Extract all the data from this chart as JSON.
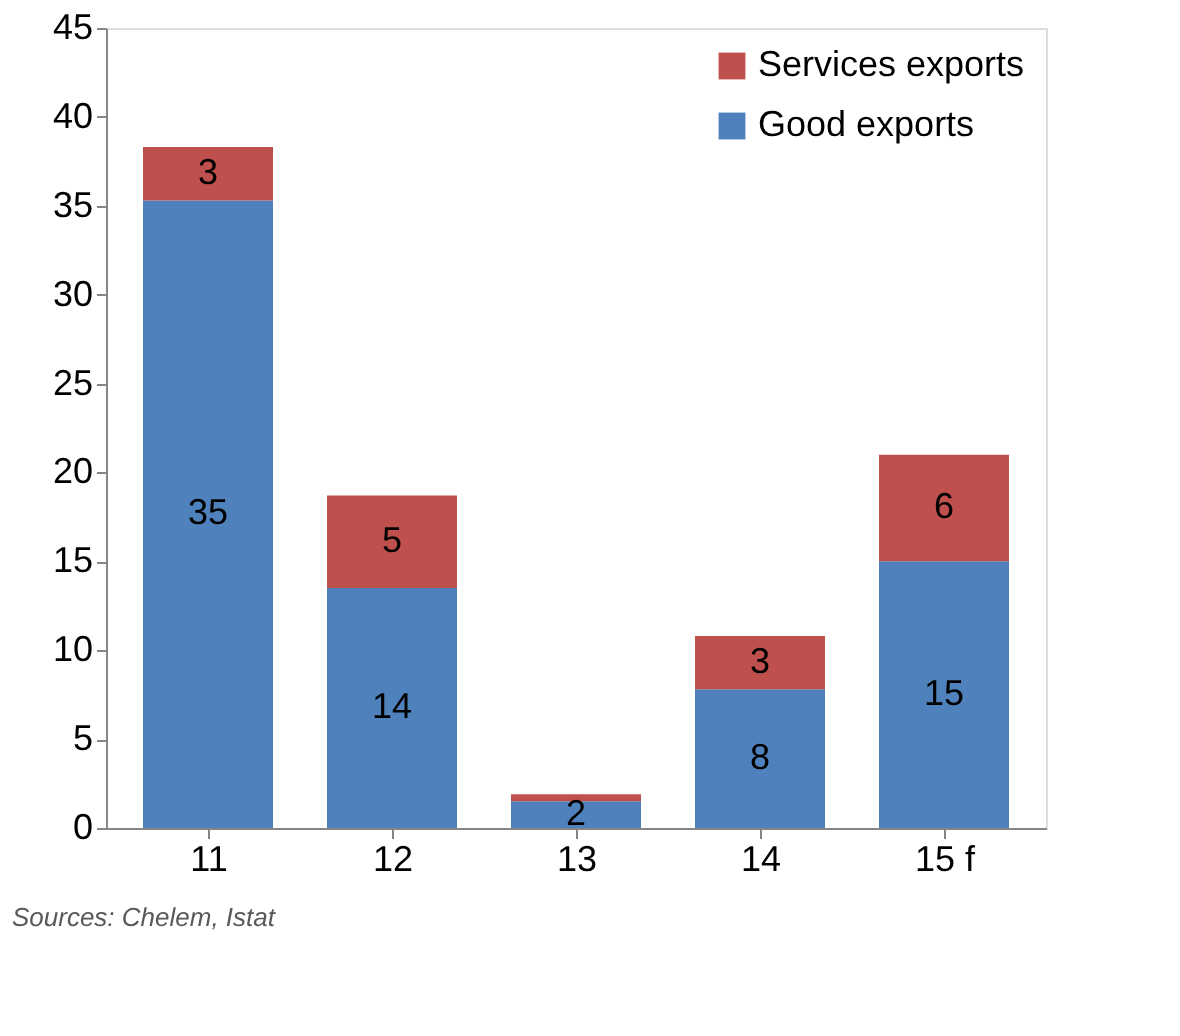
{
  "chart_data": {
    "type": "bar",
    "stacked": true,
    "categories": [
      "11",
      "12",
      "13",
      "14",
      "15 f"
    ],
    "series": [
      {
        "name": "Good exports",
        "color": "#4f81bd",
        "values": [
          35.3,
          13.5,
          1.5,
          7.8,
          15.0
        ],
        "value_labels": [
          "35",
          "14",
          "2",
          "8",
          "15"
        ]
      },
      {
        "name": "Services exports",
        "color": "#c0504d",
        "values": [
          3.0,
          5.2,
          0.4,
          3.0,
          6.0
        ],
        "value_labels": [
          "3",
          "5",
          null,
          "3",
          "6"
        ]
      }
    ],
    "ylim": [
      0,
      45
    ],
    "yticks": [
      0,
      5,
      10,
      15,
      20,
      25,
      30,
      35,
      40,
      45
    ],
    "grid": false,
    "legend": "top right",
    "annotations": [
      "Sources: Chelem, Istat"
    ]
  }
}
